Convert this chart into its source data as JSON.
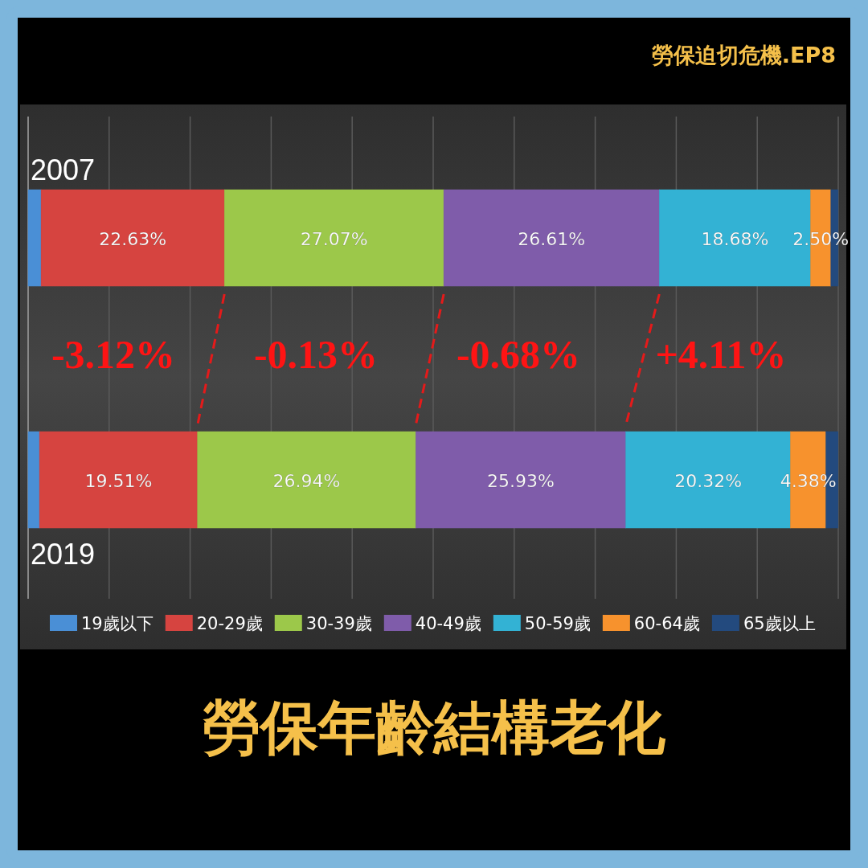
{
  "chart_data": {
    "type": "bar",
    "orientation": "horizontal",
    "stacked": true,
    "title": "勞保年齡結構老化",
    "subtitle": "勞保迫切危機.EP8",
    "categories": [
      "2007",
      "2019"
    ],
    "series": [
      {
        "name": "19歲以下",
        "color": "#4a8fd6",
        "values": [
          1.6,
          1.4
        ],
        "value_labels": [
          null,
          null
        ]
      },
      {
        "name": "20-29歲",
        "color": "#d64440",
        "values": [
          22.63,
          19.51
        ],
        "value_labels": [
          "22.63%",
          "19.51%"
        ]
      },
      {
        "name": "30-39歲",
        "color": "#9cc84a",
        "values": [
          27.07,
          26.94
        ],
        "value_labels": [
          "27.07%",
          "26.94%"
        ]
      },
      {
        "name": "40-49歲",
        "color": "#7f5caa",
        "values": [
          26.61,
          25.93
        ],
        "value_labels": [
          "26.61%",
          "25.93%"
        ]
      },
      {
        "name": "50-59歲",
        "color": "#33b2d4",
        "values": [
          18.68,
          20.32
        ],
        "value_labels": [
          "18.68%",
          "20.32%"
        ]
      },
      {
        "name": "60-64歲",
        "color": "#f7922d",
        "values": [
          2.5,
          4.38
        ],
        "value_labels": [
          "2.50%",
          "4.38%"
        ]
      },
      {
        "name": "65歲以上",
        "color": "#234a7e",
        "values": [
          0.9,
          1.5
        ],
        "value_labels": [
          null,
          null
        ]
      }
    ],
    "xlim": [
      0,
      100
    ],
    "xticks": [
      {
        "value": 0,
        "label": null
      },
      {
        "value": 10,
        "label": null
      },
      {
        "value": 20,
        "label": null
      },
      {
        "value": 30,
        "label": null
      },
      {
        "value": 40,
        "label": null
      },
      {
        "value": 50,
        "label": null
      },
      {
        "value": 60,
        "label": null
      },
      {
        "value": 70,
        "label": null
      },
      {
        "value": 80,
        "label": null
      },
      {
        "value": 90,
        "label": null
      },
      {
        "value": 100,
        "label": null
      }
    ],
    "tick_labels": "y",
    "grid": "x",
    "legend": "bottom",
    "annotations": [
      "-3.12%",
      "-0.13%",
      "-0.68%",
      "+4.11%"
    ]
  }
}
